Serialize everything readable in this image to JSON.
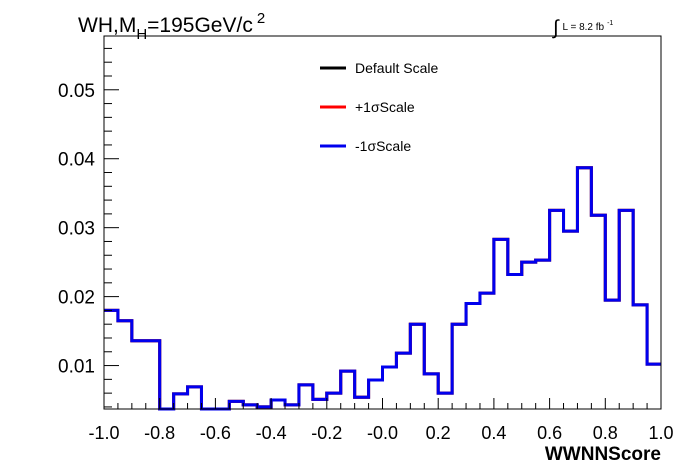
{
  "header": {
    "title_main": "WH,M",
    "title_sub": "H",
    "title_tail": "=195GeV/c",
    "title_sup": "2",
    "lumi_integral": "∫",
    "lumi_text": "L = 8.2 fb",
    "lumi_sup": "-1"
  },
  "chart_data": {
    "type": "line",
    "subtype": "histogram-step",
    "xlabel": "WWNNScore",
    "ylabel": "",
    "xlim": [
      -1.0,
      1.0
    ],
    "ylim": [
      0.0037,
      0.0578
    ],
    "x_ticks": [
      -1.0,
      -0.8,
      -0.6,
      -0.4,
      -0.2,
      0.0,
      0.2,
      0.4,
      0.6,
      0.8,
      1.0
    ],
    "x_tick_labels": [
      "-1.0",
      "-0.8",
      "-0.6",
      "-0.4",
      "-0.2",
      "-0.0",
      "0.2",
      "0.4",
      "0.6",
      "0.8",
      "1.0"
    ],
    "y_ticks": [
      0.01,
      0.02,
      0.03,
      0.04,
      0.05
    ],
    "y_tick_labels": [
      "0.01",
      "0.02",
      "0.03",
      "0.04",
      "0.05"
    ],
    "grid": false,
    "legend_position": "top-center",
    "bin_edges": [
      -1.0,
      -0.95,
      -0.9,
      -0.8,
      -0.75,
      -0.7,
      -0.65,
      -0.6,
      -0.55,
      -0.5,
      -0.45,
      -0.4,
      -0.35,
      -0.3,
      -0.25,
      -0.2,
      -0.15,
      -0.1,
      -0.05,
      0.0,
      0.05,
      0.1,
      0.15,
      0.2,
      0.25,
      0.3,
      0.35,
      0.4,
      0.45,
      0.5,
      0.55,
      0.6,
      0.65,
      0.7,
      0.75,
      0.8,
      0.85,
      0.9,
      0.95,
      1.0
    ],
    "series": [
      {
        "name": "Default Scale",
        "color": "#000000",
        "values": [
          0.018,
          0.0165,
          0.0136,
          0.0037,
          0.0059,
          0.0069,
          0.0037,
          0.0037,
          0.0048,
          0.0043,
          0.004,
          0.005,
          0.0043,
          0.0072,
          0.0051,
          0.006,
          0.0092,
          0.0054,
          0.0079,
          0.0098,
          0.0118,
          0.016,
          0.0088,
          0.006,
          0.016,
          0.019,
          0.0205,
          0.0283,
          0.0232,
          0.025,
          0.0253,
          0.0325,
          0.0295,
          0.0387,
          0.0318,
          0.0195,
          0.0325,
          0.0188,
          0.0102
        ]
      },
      {
        "name": "+1σScale",
        "color": "#ff0000",
        "values": [
          0.018,
          0.0165,
          0.0136,
          0.0037,
          0.0059,
          0.0069,
          0.0037,
          0.0037,
          0.0048,
          0.0043,
          0.004,
          0.005,
          0.0043,
          0.0072,
          0.0051,
          0.006,
          0.0092,
          0.0054,
          0.0079,
          0.0098,
          0.0118,
          0.016,
          0.0088,
          0.006,
          0.016,
          0.019,
          0.0205,
          0.0283,
          0.0232,
          0.025,
          0.0253,
          0.0325,
          0.0295,
          0.0387,
          0.0318,
          0.0195,
          0.0325,
          0.0188,
          0.0102
        ]
      },
      {
        "name": "-1σScale",
        "color": "#0000ee",
        "values": [
          0.018,
          0.0165,
          0.0136,
          0.0037,
          0.0059,
          0.0069,
          0.0037,
          0.0037,
          0.0048,
          0.0043,
          0.004,
          0.005,
          0.0043,
          0.0072,
          0.0051,
          0.006,
          0.0092,
          0.0054,
          0.0079,
          0.0098,
          0.0118,
          0.016,
          0.0088,
          0.006,
          0.016,
          0.019,
          0.0205,
          0.0283,
          0.0232,
          0.025,
          0.0253,
          0.0325,
          0.0295,
          0.0387,
          0.0318,
          0.0195,
          0.0325,
          0.0188,
          0.0102
        ]
      }
    ]
  }
}
